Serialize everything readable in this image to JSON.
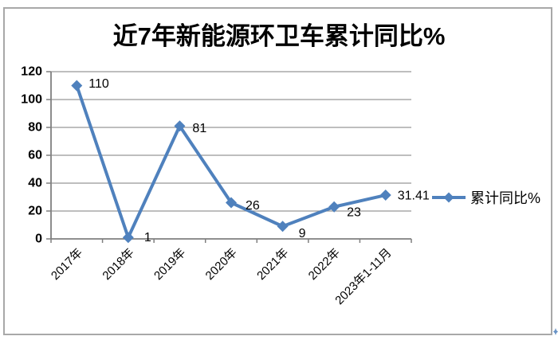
{
  "chart_data": {
    "type": "line",
    "title": "近7年新能源环卫车累计同比%",
    "categories": [
      "2017年",
      "2018年",
      "2019年",
      "2020年",
      "2021年",
      "2022年",
      "2023年1-11月"
    ],
    "series": [
      {
        "name": "累计同比%",
        "values": [
          110,
          1,
          81,
          26,
          9,
          23,
          31.41
        ]
      }
    ],
    "point_labels": [
      "110",
      "1",
      "81",
      "26",
      "9",
      "23",
      "31.41"
    ],
    "xlabel": "",
    "ylabel": "",
    "ylim": [
      0,
      120
    ],
    "yticks": [
      0,
      20,
      40,
      60,
      80,
      100,
      120
    ],
    "grid": true,
    "marker": "diamond",
    "legend_position": "right-middle",
    "colors": {
      "line": "#4F81BD",
      "grid": "#969696",
      "axis": "#7F7F7F",
      "text": "#000000",
      "frame_border": "#A8A8A8",
      "background": "#FFFFFF"
    }
  }
}
